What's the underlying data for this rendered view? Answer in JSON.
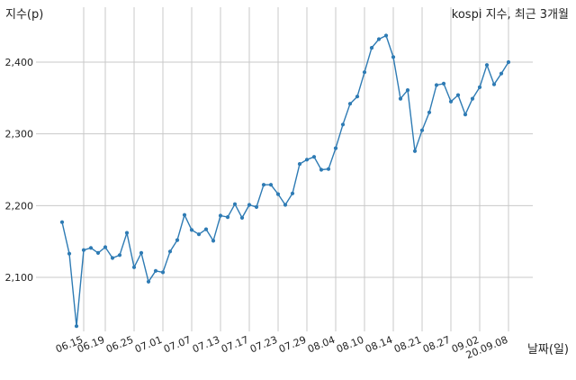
{
  "chart_data": {
    "type": "line",
    "title": "kospi 지수, 최근 3개월",
    "ylabel": "지수(p)",
    "xlabel": "날짜(일)",
    "ylim": [
      2030,
      2440
    ],
    "yticks": [
      2100,
      2200,
      2300,
      2400
    ],
    "ytick_labels": [
      "2,100",
      "2,200",
      "2,300",
      "2,400"
    ],
    "xtick_labels": [
      "06.15",
      "06.19",
      "06.25",
      "07.01",
      "07.07",
      "07.13",
      "07.17",
      "07.23",
      "07.29",
      "08.04",
      "08.10",
      "08.14",
      "08.21",
      "08.27",
      "09.02",
      "20.09.08"
    ],
    "xtick_indices": [
      3,
      6,
      10,
      14,
      18,
      22,
      26,
      30,
      34,
      38,
      42,
      46,
      50,
      54,
      58,
      62
    ],
    "grid": true,
    "series": [
      {
        "name": "",
        "color": "#2e7bb4",
        "values": [
          2177,
          2133,
          2032,
          2138,
          2141,
          2134,
          2142,
          2127,
          2131,
          2162,
          2114,
          2134,
          2094,
          2109,
          2107,
          2136,
          2152,
          2187,
          2166,
          2160,
          2167,
          2151,
          2186,
          2184,
          2202,
          2183,
          2201,
          2198,
          2229,
          2229,
          2216,
          2201,
          2217,
          2258,
          2264,
          2268,
          2250,
          2251,
          2280,
          2313,
          2342,
          2352,
          2386,
          2420,
          2432,
          2437,
          2407,
          2349,
          2361,
          2276,
          2305,
          2330,
          2368,
          2370,
          2345,
          2354,
          2327,
          2349,
          2365,
          2396,
          2369,
          2384,
          2400
        ]
      }
    ]
  }
}
